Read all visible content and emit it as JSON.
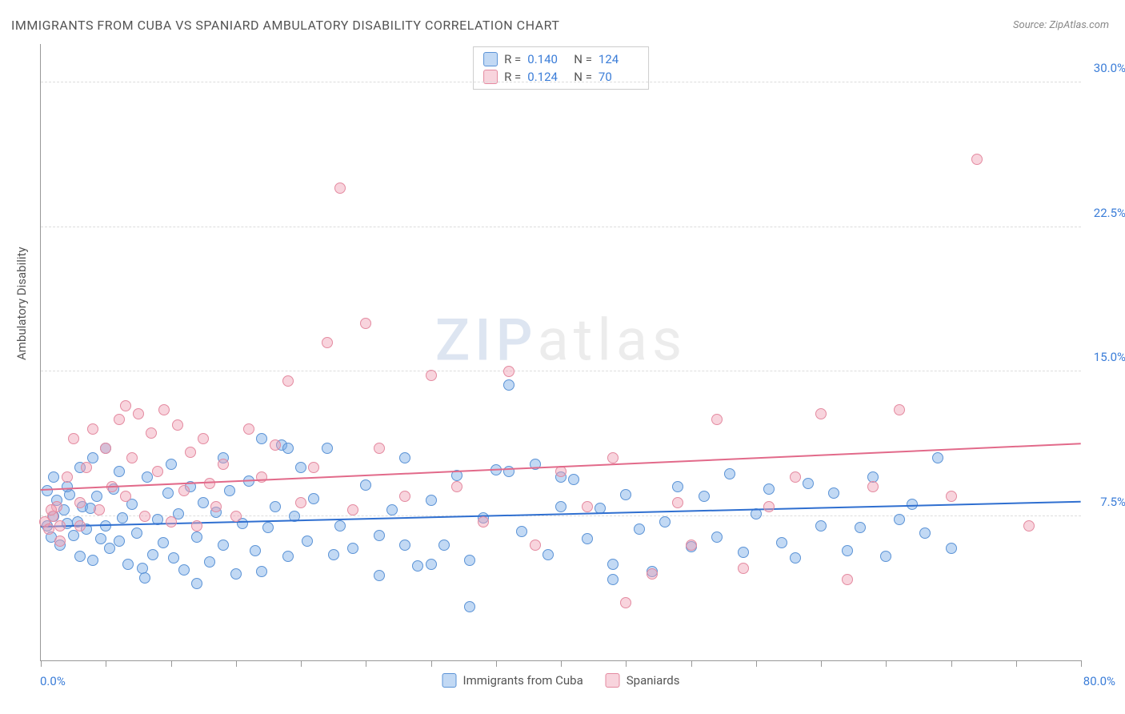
{
  "title": "IMMIGRANTS FROM CUBA VS SPANIARD AMBULATORY DISABILITY CORRELATION CHART",
  "source_label": "Source:",
  "source_value": "ZipAtlas.com",
  "ylabel": "Ambulatory Disability",
  "watermark_zip": "ZIP",
  "watermark_rest": "atlas",
  "chart": {
    "type": "scatter",
    "xlim": [
      0,
      80
    ],
    "ylim": [
      0,
      32
    ],
    "xlim_labels": [
      "0.0%",
      "80.0%"
    ],
    "yticks": [
      7.5,
      15.0,
      22.5,
      30.0
    ],
    "ytick_labels": [
      "7.5%",
      "15.0%",
      "22.5%",
      "30.0%"
    ],
    "xtick_positions": [
      0,
      5,
      10,
      15,
      20,
      25,
      30,
      35,
      40,
      45,
      50,
      55,
      60,
      65,
      70,
      75,
      80
    ],
    "background_color": "#ffffff",
    "grid_color": "#dddddd",
    "point_radius": 7,
    "series": [
      {
        "name": "Immigrants from Cuba",
        "fill": "rgba(120,170,230,0.45)",
        "stroke": "#5b93d6",
        "line_color": "#2f6fd0",
        "R": "0.140",
        "N": "124",
        "trend": {
          "x1": 0,
          "y1": 6.9,
          "x2": 80,
          "y2": 8.2
        },
        "points": [
          [
            0.5,
            7.0
          ],
          [
            0.8,
            6.4
          ],
          [
            1.0,
            7.5
          ],
          [
            1.2,
            8.3
          ],
          [
            1.5,
            6.0
          ],
          [
            1.8,
            7.8
          ],
          [
            2.0,
            7.1
          ],
          [
            2.2,
            8.6
          ],
          [
            2.5,
            6.5
          ],
          [
            2.8,
            7.2
          ],
          [
            3.0,
            5.4
          ],
          [
            3.2,
            8.0
          ],
          [
            3.5,
            6.8
          ],
          [
            3.8,
            7.9
          ],
          [
            4.0,
            5.2
          ],
          [
            4.3,
            8.5
          ],
          [
            4.6,
            6.3
          ],
          [
            5.0,
            7.0
          ],
          [
            5.3,
            5.8
          ],
          [
            5.6,
            8.9
          ],
          [
            6.0,
            6.2
          ],
          [
            6.3,
            7.4
          ],
          [
            6.7,
            5.0
          ],
          [
            7.0,
            8.1
          ],
          [
            7.4,
            6.6
          ],
          [
            7.8,
            4.8
          ],
          [
            8.2,
            9.5
          ],
          [
            8.6,
            5.5
          ],
          [
            9.0,
            7.3
          ],
          [
            9.4,
            6.1
          ],
          [
            9.8,
            8.7
          ],
          [
            10.2,
            5.3
          ],
          [
            10.6,
            7.6
          ],
          [
            11.0,
            4.7
          ],
          [
            11.5,
            9.0
          ],
          [
            12.0,
            6.4
          ],
          [
            12.5,
            8.2
          ],
          [
            13.0,
            5.1
          ],
          [
            13.5,
            7.7
          ],
          [
            14.0,
            6.0
          ],
          [
            14.5,
            8.8
          ],
          [
            15.0,
            4.5
          ],
          [
            15.5,
            7.1
          ],
          [
            16.0,
            9.3
          ],
          [
            16.5,
            5.7
          ],
          [
            17.0,
            11.5
          ],
          [
            17.5,
            6.9
          ],
          [
            18.0,
            8.0
          ],
          [
            18.5,
            11.2
          ],
          [
            19.0,
            5.4
          ],
          [
            19.5,
            7.5
          ],
          [
            20.0,
            10.0
          ],
          [
            20.5,
            6.2
          ],
          [
            21.0,
            8.4
          ],
          [
            22.0,
            11.0
          ],
          [
            23.0,
            7.0
          ],
          [
            24.0,
            5.8
          ],
          [
            25.0,
            9.1
          ],
          [
            26.0,
            6.5
          ],
          [
            27.0,
            7.8
          ],
          [
            28.0,
            10.5
          ],
          [
            29.0,
            4.9
          ],
          [
            30.0,
            8.3
          ],
          [
            31.0,
            6.0
          ],
          [
            32.0,
            9.6
          ],
          [
            33.0,
            5.2
          ],
          [
            34.0,
            7.4
          ],
          [
            35.0,
            9.9
          ],
          [
            36.0,
            14.3
          ],
          [
            37.0,
            6.7
          ],
          [
            38.0,
            10.2
          ],
          [
            39.0,
            5.5
          ],
          [
            40.0,
            8.0
          ],
          [
            41.0,
            9.4
          ],
          [
            42.0,
            6.3
          ],
          [
            43.0,
            7.9
          ],
          [
            44.0,
            5.0
          ],
          [
            45.0,
            8.6
          ],
          [
            46.0,
            6.8
          ],
          [
            47.0,
            4.6
          ],
          [
            48.0,
            7.2
          ],
          [
            49.0,
            9.0
          ],
          [
            50.0,
            5.9
          ],
          [
            51.0,
            8.5
          ],
          [
            52.0,
            6.4
          ],
          [
            53.0,
            9.7
          ],
          [
            54.0,
            5.6
          ],
          [
            55.0,
            7.6
          ],
          [
            56.0,
            8.9
          ],
          [
            57.0,
            6.1
          ],
          [
            58.0,
            5.3
          ],
          [
            59.0,
            9.2
          ],
          [
            60.0,
            7.0
          ],
          [
            61.0,
            8.7
          ],
          [
            62.0,
            5.7
          ],
          [
            63.0,
            6.9
          ],
          [
            64.0,
            9.5
          ],
          [
            65.0,
            5.4
          ],
          [
            66.0,
            7.3
          ],
          [
            67.0,
            8.1
          ],
          [
            68.0,
            6.6
          ],
          [
            69.0,
            10.5
          ],
          [
            70.0,
            5.8
          ],
          [
            33.0,
            2.8
          ],
          [
            44.0,
            4.2
          ],
          [
            12.0,
            4.0
          ],
          [
            8.0,
            4.3
          ],
          [
            26.0,
            4.4
          ],
          [
            40.0,
            9.5
          ],
          [
            36.0,
            9.8
          ],
          [
            28.0,
            6.0
          ],
          [
            30.0,
            5.0
          ],
          [
            22.5,
            5.5
          ],
          [
            17.0,
            4.6
          ],
          [
            14.0,
            10.5
          ],
          [
            19.0,
            11.0
          ],
          [
            10.0,
            10.2
          ],
          [
            6.0,
            9.8
          ],
          [
            4.0,
            10.5
          ],
          [
            2.0,
            9.0
          ],
          [
            0.5,
            8.8
          ],
          [
            1.0,
            9.5
          ],
          [
            3.0,
            10.0
          ],
          [
            5.0,
            11.0
          ]
        ]
      },
      {
        "name": "Spaniards",
        "fill": "rgba(240,160,180,0.45)",
        "stroke": "#e48aa0",
        "line_color": "#e26a8a",
        "R": "0.124",
        "N": "70",
        "trend": {
          "x1": 0,
          "y1": 8.8,
          "x2": 80,
          "y2": 11.2
        },
        "points": [
          [
            0.3,
            7.2
          ],
          [
            0.6,
            6.8
          ],
          [
            0.9,
            7.5
          ],
          [
            1.2,
            8.0
          ],
          [
            1.5,
            7.0
          ],
          [
            2.0,
            9.5
          ],
          [
            2.5,
            11.5
          ],
          [
            3.0,
            8.2
          ],
          [
            3.5,
            10.0
          ],
          [
            4.0,
            12.0
          ],
          [
            4.5,
            7.8
          ],
          [
            5.0,
            11.0
          ],
          [
            5.5,
            9.0
          ],
          [
            6.0,
            12.5
          ],
          [
            6.5,
            8.5
          ],
          [
            7.0,
            10.5
          ],
          [
            7.5,
            12.8
          ],
          [
            8.0,
            7.5
          ],
          [
            8.5,
            11.8
          ],
          [
            9.0,
            9.8
          ],
          [
            9.5,
            13.0
          ],
          [
            10.0,
            7.2
          ],
          [
            10.5,
            12.2
          ],
          [
            11.0,
            8.8
          ],
          [
            11.5,
            10.8
          ],
          [
            12.0,
            7.0
          ],
          [
            12.5,
            11.5
          ],
          [
            13.0,
            9.2
          ],
          [
            13.5,
            8.0
          ],
          [
            14.0,
            10.2
          ],
          [
            15.0,
            7.5
          ],
          [
            16.0,
            12.0
          ],
          [
            17.0,
            9.5
          ],
          [
            18.0,
            11.2
          ],
          [
            19.0,
            14.5
          ],
          [
            20.0,
            8.2
          ],
          [
            21.0,
            10.0
          ],
          [
            22.0,
            16.5
          ],
          [
            23.0,
            24.5
          ],
          [
            24.0,
            7.8
          ],
          [
            25.0,
            17.5
          ],
          [
            26.0,
            11.0
          ],
          [
            28.0,
            8.5
          ],
          [
            30.0,
            14.8
          ],
          [
            32.0,
            9.0
          ],
          [
            34.0,
            7.2
          ],
          [
            36.0,
            15.0
          ],
          [
            38.0,
            6.0
          ],
          [
            40.0,
            9.8
          ],
          [
            42.0,
            8.0
          ],
          [
            44.0,
            10.5
          ],
          [
            45.0,
            3.0
          ],
          [
            47.0,
            4.5
          ],
          [
            49.0,
            8.2
          ],
          [
            50.0,
            6.0
          ],
          [
            52.0,
            12.5
          ],
          [
            54.0,
            4.8
          ],
          [
            56.0,
            8.0
          ],
          [
            58.0,
            9.5
          ],
          [
            60.0,
            12.8
          ],
          [
            62.0,
            4.2
          ],
          [
            64.0,
            9.0
          ],
          [
            66.0,
            13.0
          ],
          [
            70.0,
            8.5
          ],
          [
            72.0,
            26.0
          ],
          [
            76.0,
            7.0
          ],
          [
            3.0,
            7.0
          ],
          [
            1.5,
            6.2
          ],
          [
            0.8,
            7.8
          ],
          [
            6.5,
            13.2
          ]
        ]
      }
    ]
  },
  "legend_bottom": [
    {
      "label": "Immigrants from Cuba",
      "fill": "rgba(120,170,230,0.45)",
      "stroke": "#5b93d6"
    },
    {
      "label": "Spaniards",
      "fill": "rgba(240,160,180,0.45)",
      "stroke": "#e48aa0"
    }
  ]
}
